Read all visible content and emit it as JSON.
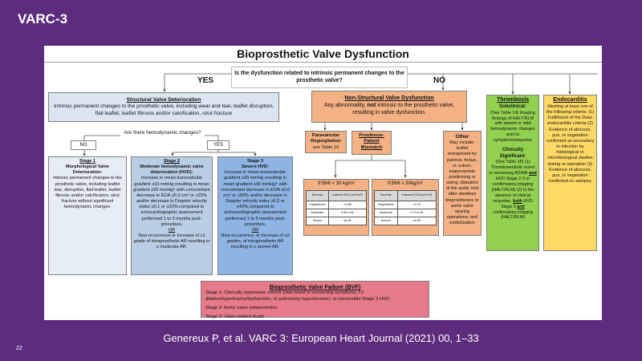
{
  "slide_title": "VARC-3",
  "diagram_title": "Bioprosthetic Valve Dysfunction",
  "question": "Is the dysfunction related to intrinsic permanent changes to the prosthetic valve?",
  "yes": "YES",
  "no": "NO",
  "svd": {
    "title": "Structural Valve Deterioration",
    "body": "Intrinsic permanent changes to the prosthetic valve, including wear and tear, leaflet disruption, flail leaflet, leaflet fibrosis and/or calcification, strut fracture"
  },
  "hemo_question": "Are there hemodynamic changes?",
  "hemo_no": "NO",
  "hemo_yes": "YES",
  "stage1": {
    "title": "Stage 1",
    "subtitle": "Morphological Valve Deterioration:",
    "body": "Intrinsic permanent changes to the prosthetic valve, including leaflet tear, disruption, flail leaflet, leaflet fibrosis and/or calcification, strut fracture without significant hemodynamic changes."
  },
  "stage2": {
    "title": "Stage 2",
    "subtitle": "Moderate hemodynamic valve deterioration (HVD):",
    "body": "Increase in mean transvalvular gradient ≥10 mmHg resulting in mean gradient ≥20 mmHg† with concomitant decrease in EOA ≥0.3 cm² or ≥25% and/or decrease in Doppler velocity index ≥0.1 or ≥20% compared to echocardiographic assessment performed 1 to 3 months post-procedure,",
    "or": "OR",
    "body2": "New occurrence or increase of ≥1 grade of intraprosthetic AR resulting in ≥ moderate AR."
  },
  "stage3": {
    "title": "Stage 3",
    "subtitle": "Severe HVD:",
    "body": "Increase in mean transvalvular gradient ≥20 mmHg resulting in mean gradient ≥30 mmHg† with concomitant decrease in EOA ≥0.6 cm² or ≥50% and/or decrease in Doppler velocity index ≥0.2 or ≥40% compared to echocardiographic assessment performed 1 to 3 months post-procedure,",
    "or": "OR",
    "body2": "New occurrence, or increase of ≥2 grades, of intraprosthetic AR resulting in ≥ severe AR."
  },
  "nsvd": {
    "title": "Non-Structural Valve Dysfunction",
    "body_pre": "Any abnormality, ",
    "body_bold": "not",
    "body_post": " intrinsic to the prosthetic valve, resulting in valve dysfunction."
  },
  "pvr": {
    "title": "Paravalvular Regurgitation",
    "body": "see Table 16"
  },
  "ppm": {
    "title": "Prosthesis-Patient Mismatch"
  },
  "bmi_tables": [
    {
      "title": "If BMI < 30 kg/m²",
      "header": [
        "Severity",
        "Indexed EOA [cm²/m²]"
      ],
      "rows": [
        [
          "Insignificant",
          ">0.85"
        ],
        [
          "Moderate",
          "0.85-0.66"
        ],
        [
          "Severe",
          "≤0.65"
        ]
      ]
    },
    {
      "title": "If BMI ≥ 30kg/m²",
      "header": [
        "Severity",
        "Indexed EOA [cm²/m²]"
      ],
      "rows": [
        [
          "Insignificant",
          ">0.70"
        ],
        [
          "Moderate",
          "0.70-0.56"
        ],
        [
          "Severe",
          "≤0.55"
        ]
      ]
    }
  ],
  "other": {
    "title": "Other",
    "body": "May include: leaflet entrapment by pannus, tissue, or suture; inappropriate positioning or sizing; dilatation of the aortic root after stentless bioprostheses or aortic valve sparing operations; and embolization"
  },
  "thrombosis": {
    "title": "Thrombosis",
    "sub1": "Subclinical:",
    "body1": "(See Table 14) Imaging findings of HALT/RLM with absent or mild hemodynamic changes and no symptoms/sequelae",
    "sub2": "Clinically Significant:",
    "body2a": "(See Table 15) (1) Thromboembolic event or worsening AS/AR ",
    "and1": "and",
    "body2b": " HVD Stage 2-3 or confirmatory imaging (HALT/RLM) (2) In the absence of clinical sequelae, ",
    "both": "both",
    "body2c": " HVD Stage 3 ",
    "and2": "and",
    "body2d": " confirmatory imaging (HALT/RLM)"
  },
  "endocarditis": {
    "title": "Endocarditis",
    "body": "Meeting at least one of the following criteria: (1) Fulfillment of the Duke endocarditis criteria (2) Evidence of abscess, pus, or vegetation confirmed as secondary to infection by histological or microbiological studies during re-operation (3) Evidence of abscess, pus, or vegetation confirmed on autopsy."
  },
  "bvf": {
    "title": "Bioprosthetic Valve Failure (BVF)",
    "stages": [
      "Stage 1: Clinically expressive criteria (new-onset or worsening symptoms, LV dilation/hypertrophy/dysfunction, or pulmonary hypertension), or irreversible Stage 3 HVD",
      "Stage 2: Aortic valve reintervention",
      "Stage 3: Valve-related death"
    ]
  },
  "footer": "Genereux P, et al. VARC 3: European Heart Journal (2021) 00, 1–33",
  "page_number": "22",
  "colors": {
    "background": "#5d2c7d",
    "svd": "#dbe5f1",
    "stage2": "#b9cde5",
    "stage3": "#8eb4e3",
    "nsvd": "#f4b183",
    "thrombosis": "#92d050",
    "endocarditis": "#ffd966",
    "bvf": "#e67a8a"
  }
}
